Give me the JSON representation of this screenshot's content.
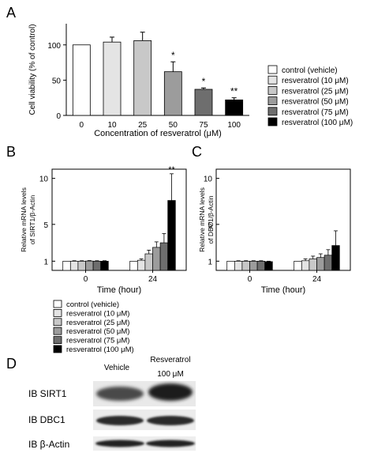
{
  "panels": {
    "A": "A",
    "B": "B",
    "C": "C",
    "D": "D"
  },
  "colors": {
    "control (vehicle)": "#ffffff",
    "resveratrol (10 μM)": "#e4e4e4",
    "resveratrol (25 μM)": "#c8c8c8",
    "resveratrol (50 μM)": "#9c9c9c",
    "resveratrol (75 μM)": "#6e6e6e",
    "resveratrol (100 μM)": "#000000"
  },
  "chart_data": [
    {
      "panel": "A",
      "type": "bar",
      "ylabel": "Cell viability (% of control)",
      "xlabel": "Concentration of resveratrol (μM)",
      "ylim": [
        0,
        130
      ],
      "yticks": [
        0,
        50,
        100
      ],
      "categories": [
        "0",
        "10",
        "25",
        "50",
        "75",
        "100"
      ],
      "values": [
        100,
        104,
        106,
        62,
        37,
        22
      ],
      "errors": [
        0,
        7,
        12,
        14,
        2,
        3
      ],
      "annotations": [
        "",
        "",
        "",
        "*",
        "*",
        "**"
      ],
      "legend_position": "right",
      "legend": [
        "control (vehicle)",
        "resveratrol (10 μM)",
        "resveratrol (25 μM)",
        "resveratrol (50 μM)",
        "resveratrol (75 μM)",
        "resveratrol (100 μM)"
      ]
    },
    {
      "panel": "B",
      "type": "bar",
      "ylabel_lines": [
        "Relative mRNA levels",
        "of SIRT1/β-Actin"
      ],
      "xlabel": "Time (hour)",
      "ylim": [
        0,
        11
      ],
      "yticks": [
        1,
        5,
        10
      ],
      "categories": [
        "0",
        "24"
      ],
      "series": [
        {
          "name": "control (vehicle)",
          "values": [
            1.0,
            1.0
          ],
          "errors": [
            0,
            0
          ]
        },
        {
          "name": "resveratrol (10 μM)",
          "values": [
            1.0,
            1.1
          ],
          "errors": [
            0.05,
            0.15
          ]
        },
        {
          "name": "resveratrol (25 μM)",
          "values": [
            1.0,
            1.8
          ],
          "errors": [
            0.05,
            0.4
          ]
        },
        {
          "name": "resveratrol (50 μM)",
          "values": [
            1.02,
            2.5
          ],
          "errors": [
            0.05,
            0.6
          ]
        },
        {
          "name": "resveratrol (75 μM)",
          "values": [
            1.0,
            3.0
          ],
          "errors": [
            0.05,
            1.0
          ]
        },
        {
          "name": "resveratrol (100 μM)",
          "values": [
            1.0,
            7.6
          ],
          "errors": [
            0.05,
            2.9
          ]
        }
      ],
      "annotations": [
        {
          "category": "24",
          "text": "**"
        }
      ]
    },
    {
      "panel": "C",
      "type": "bar",
      "ylabel_lines": [
        "Relative mRNA levels",
        "of DBC1/β-Actin"
      ],
      "xlabel": "Time (hour)",
      "ylim": [
        0,
        11
      ],
      "yticks": [
        1,
        5,
        10
      ],
      "categories": [
        "0",
        "24"
      ],
      "series": [
        {
          "name": "control (vehicle)",
          "values": [
            1.0,
            1.0
          ],
          "errors": [
            0,
            0
          ]
        },
        {
          "name": "resveratrol (10 μM)",
          "values": [
            1.0,
            1.05
          ],
          "errors": [
            0.05,
            0.2
          ]
        },
        {
          "name": "resveratrol (25 μM)",
          "values": [
            1.0,
            1.25
          ],
          "errors": [
            0.05,
            0.3
          ]
        },
        {
          "name": "resveratrol (50 μM)",
          "values": [
            1.0,
            1.4
          ],
          "errors": [
            0.05,
            0.4
          ]
        },
        {
          "name": "resveratrol (75 μM)",
          "values": [
            1.0,
            1.65
          ],
          "errors": [
            0.05,
            0.6
          ]
        },
        {
          "name": "resveratrol (100 μM)",
          "values": [
            0.95,
            2.7
          ],
          "errors": [
            0.05,
            1.6
          ]
        }
      ]
    }
  ],
  "blot": {
    "col1": "Vehicle",
    "col2_lines": [
      "Resveratrol",
      "100 μM"
    ],
    "rows": [
      "IB SIRT1",
      "IB DBC1",
      "IB β-Actin"
    ]
  }
}
